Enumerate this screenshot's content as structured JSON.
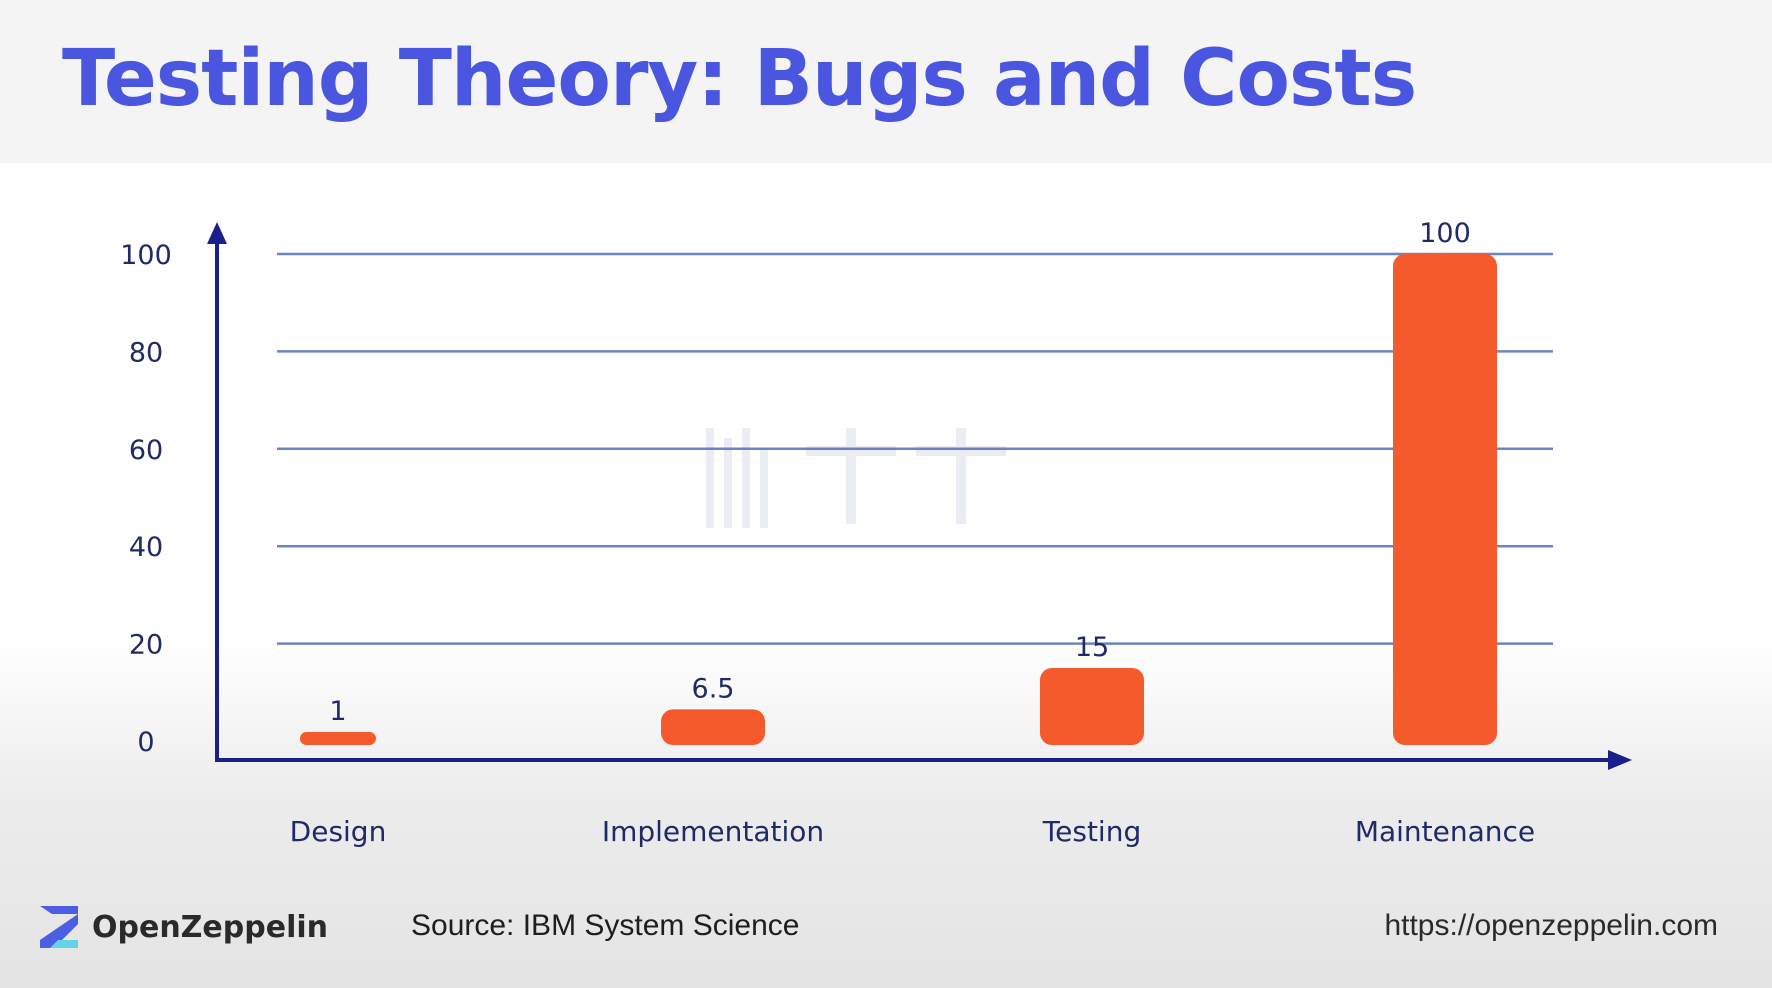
{
  "slide": {
    "title": "Testing Theory: Bugs and Costs",
    "brand": "OpenZeppelin",
    "source": "Source: IBM System Science",
    "url": "https://openzeppelin.com"
  },
  "colors": {
    "title": "#4a55e0",
    "axis": "#1b1f8c",
    "grid": "#6c84c4",
    "bar": "#f55a2c",
    "text": "#1f2a66"
  },
  "chart_data": {
    "type": "bar",
    "title": "",
    "xlabel": "",
    "ylabel": "",
    "categories": [
      "Design",
      "Implementation",
      "Testing",
      "Maintenance"
    ],
    "values": [
      1,
      6.5,
      15,
      100
    ],
    "data_labels": [
      "1",
      "6.5",
      "15",
      "100"
    ],
    "yticks": [
      0,
      20,
      40,
      60,
      80,
      100
    ],
    "ylim": [
      0,
      100
    ],
    "grid": true,
    "legend": "none"
  }
}
